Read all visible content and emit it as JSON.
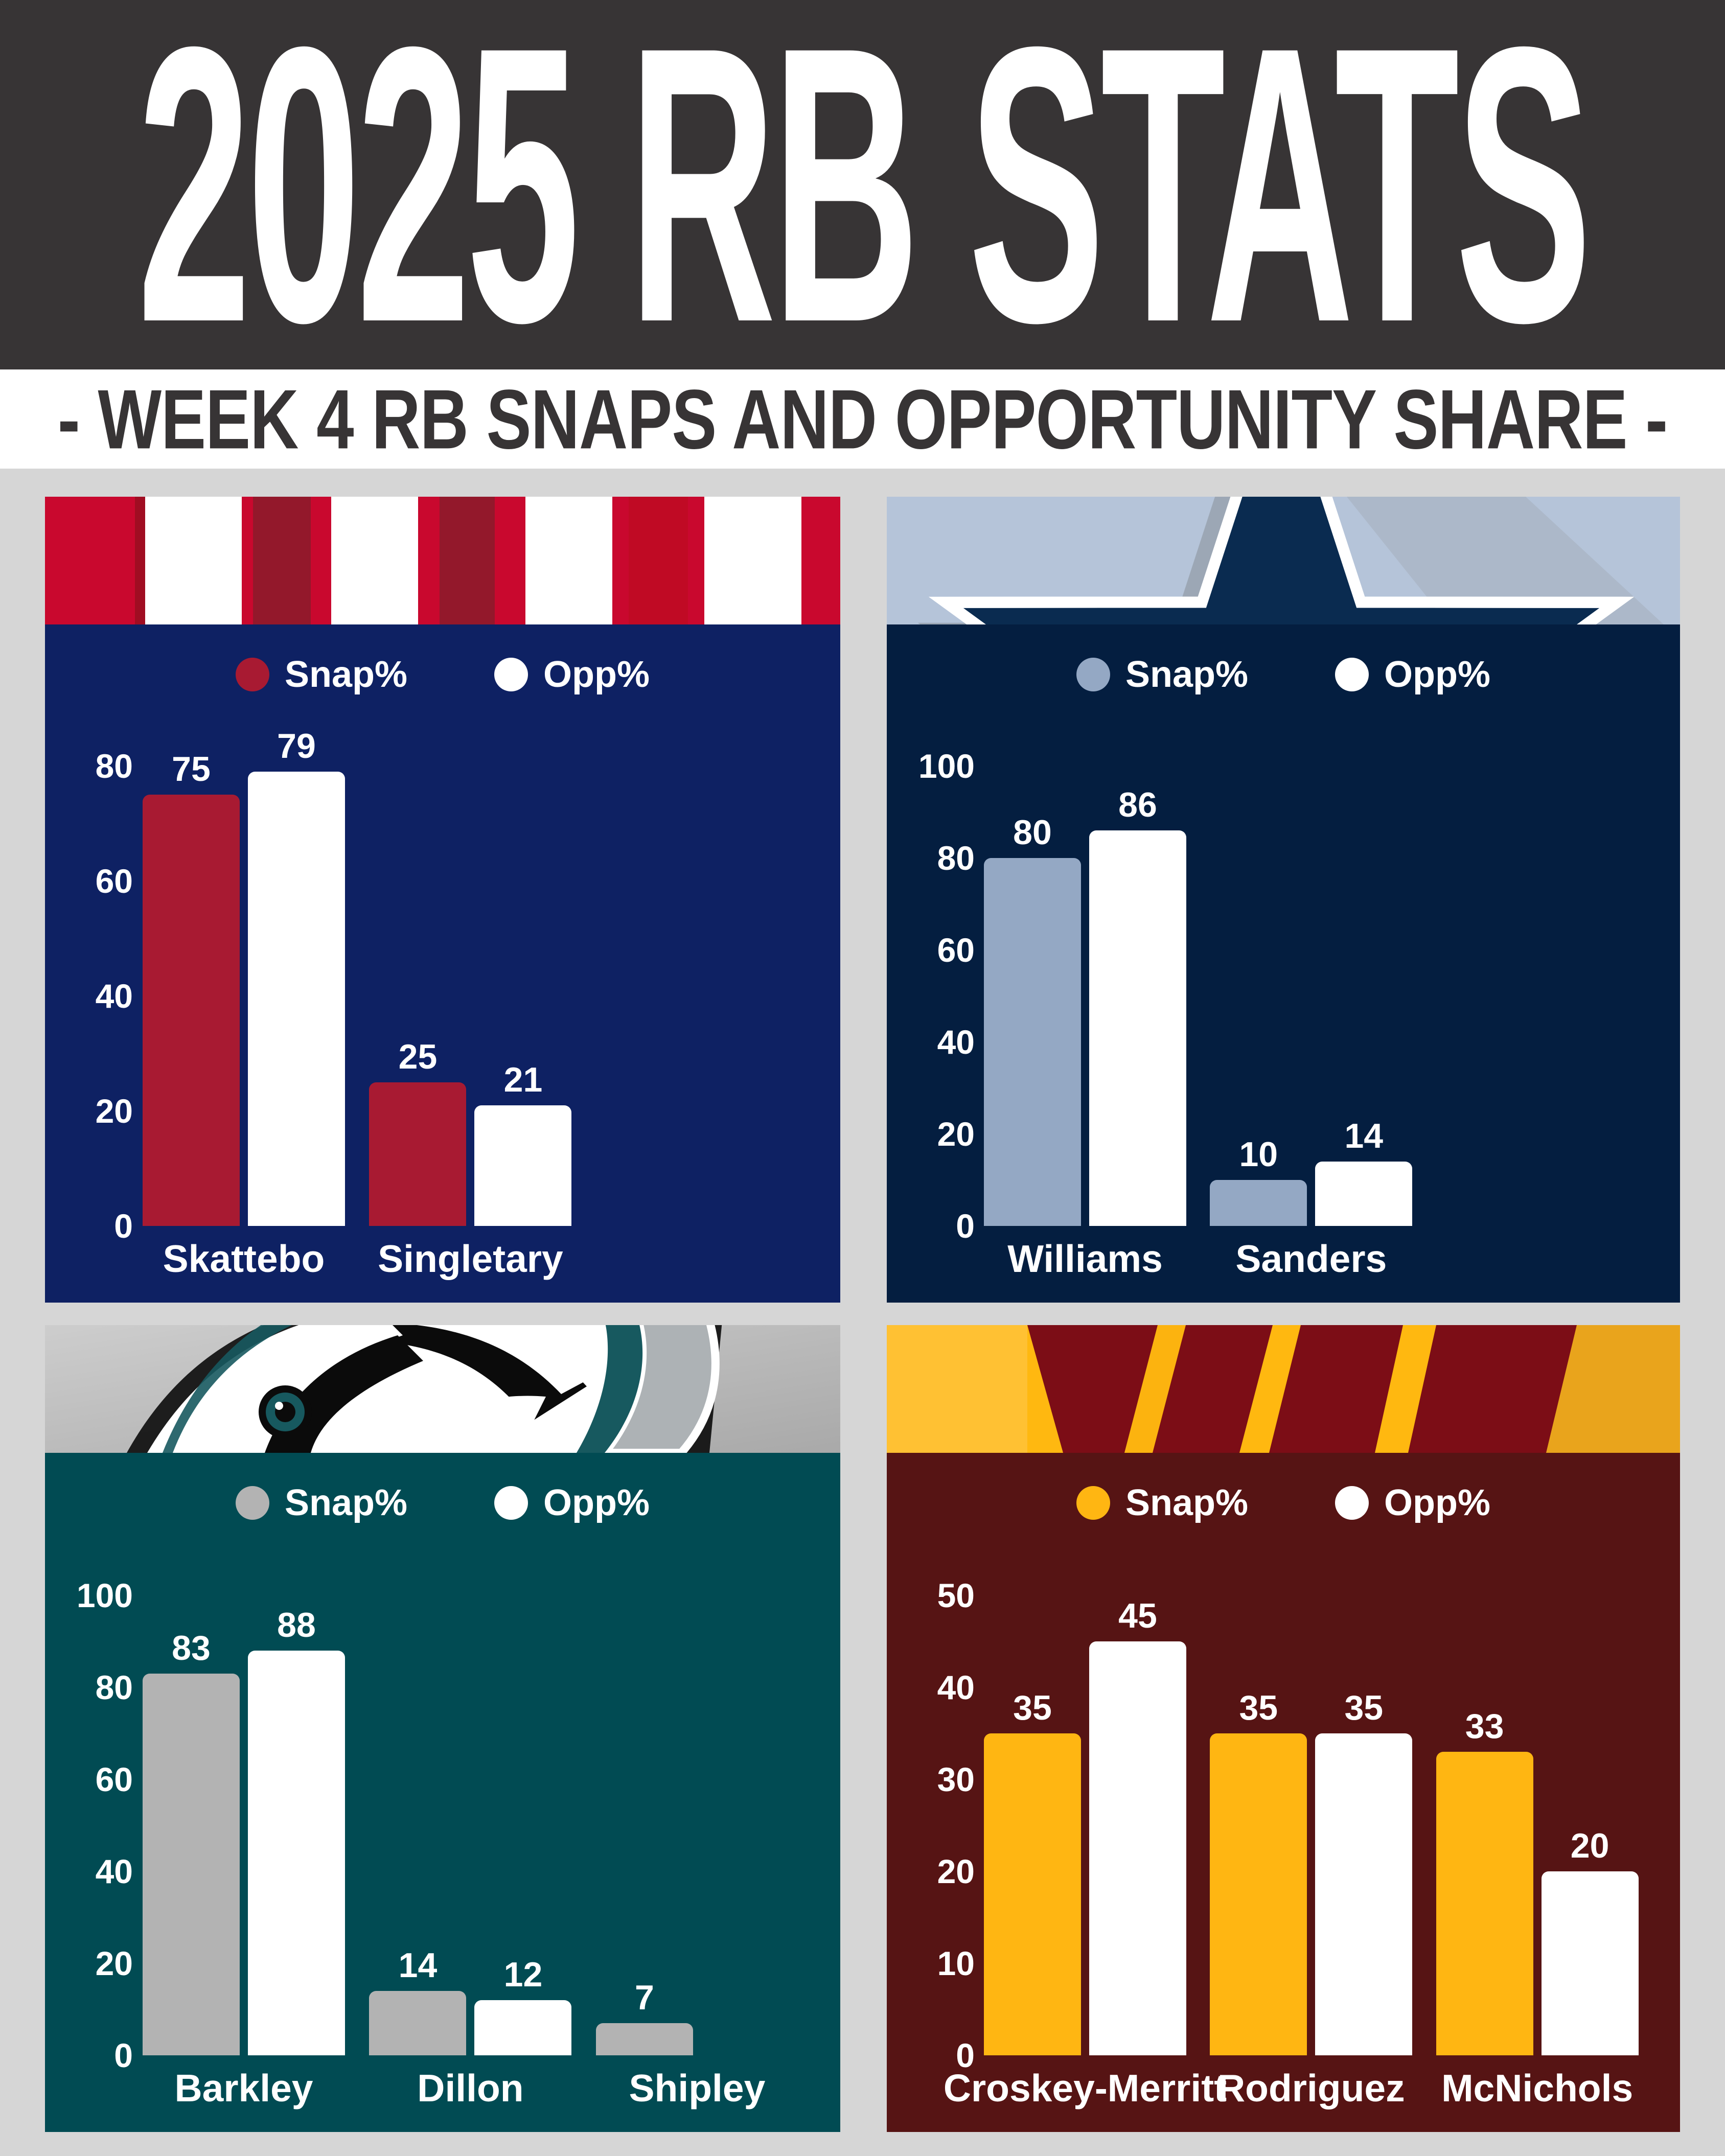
{
  "page_bg": "#D6D6D6",
  "header": {
    "title": "2025 RB STATS",
    "bg": "#373435",
    "color": "#FFFFFF"
  },
  "subtitle": {
    "text": "- WEEK 4 RB SNAPS AND OPPORTUNITY SHARE -",
    "bg": "#FFFFFF",
    "color": "#373435"
  },
  "chart_data": [
    {
      "type": "bar",
      "team": "giants",
      "logo_icon": "giants-stripes-icon",
      "categories": [
        "Skattebo",
        "Singletary"
      ],
      "series": [
        {
          "name": "Snap%",
          "values": [
            75,
            25
          ]
        },
        {
          "name": "Opp%",
          "values": [
            79,
            21
          ]
        }
      ],
      "ylim": [
        0,
        80
      ],
      "yticks": [
        80,
        60,
        40,
        20,
        0
      ],
      "legend_position": "top-center",
      "grid": false,
      "colors": {
        "panel_bg": "#0E2163",
        "snap": "#A81A32",
        "opp": "#FFFFFF",
        "header_bg": "#FFFFFF",
        "header_red": "#C9082E",
        "header_dark_red": "#93182B"
      }
    },
    {
      "type": "bar",
      "team": "cowboys",
      "logo_icon": "cowboys-star-icon",
      "categories": [
        "Williams",
        "Sanders"
      ],
      "series": [
        {
          "name": "Snap%",
          "values": [
            80,
            10
          ]
        },
        {
          "name": "Opp%",
          "values": [
            86,
            14
          ]
        }
      ],
      "ylim": [
        0,
        100
      ],
      "yticks": [
        100,
        80,
        60,
        40,
        20,
        0
      ],
      "legend_position": "top-center",
      "grid": false,
      "colors": {
        "panel_bg": "#041E40",
        "snap": "#94A8C4",
        "opp": "#FFFFFF",
        "header_bg": "#B5C4D9",
        "header_star": "#0A2B50",
        "header_shadow": "#96A0AB"
      }
    },
    {
      "type": "bar",
      "team": "eagles",
      "logo_icon": "eagles-head-icon",
      "categories": [
        "Barkley",
        "Dillon",
        "Shipley"
      ],
      "series": [
        {
          "name": "Snap%",
          "values": [
            83,
            14,
            7
          ]
        },
        {
          "name": "Opp%",
          "values": [
            88,
            12,
            null
          ]
        }
      ],
      "ylim": [
        0,
        100
      ],
      "yticks": [
        100,
        80,
        60,
        40,
        20,
        0
      ],
      "legend_position": "top-center",
      "grid": false,
      "colors": {
        "panel_bg": "#014B53",
        "snap": "#B3B3B3",
        "opp": "#FFFFFF",
        "header_bg": "#BFBFBF",
        "header_teal": "#17595F",
        "header_black": "#0B0B0B"
      }
    },
    {
      "type": "bar",
      "team": "commanders",
      "logo_icon": "commanders-w-icon",
      "categories": [
        "Croskey-Merritt",
        "Rodriguez",
        "McNichols"
      ],
      "series": [
        {
          "name": "Snap%",
          "values": [
            35,
            35,
            33
          ]
        },
        {
          "name": "Opp%",
          "values": [
            45,
            35,
            20
          ]
        }
      ],
      "ylim": [
        0,
        50
      ],
      "yticks": [
        50,
        40,
        30,
        20,
        10,
        0
      ],
      "legend_position": "top-center",
      "grid": false,
      "colors": {
        "panel_bg": "#561414",
        "snap": "#FFB612",
        "opp": "#FFFFFF",
        "header_bg": "#FFB810",
        "header_burgundy": "#7C0D16",
        "header_gold_dark": "#E9A41C"
      }
    }
  ]
}
